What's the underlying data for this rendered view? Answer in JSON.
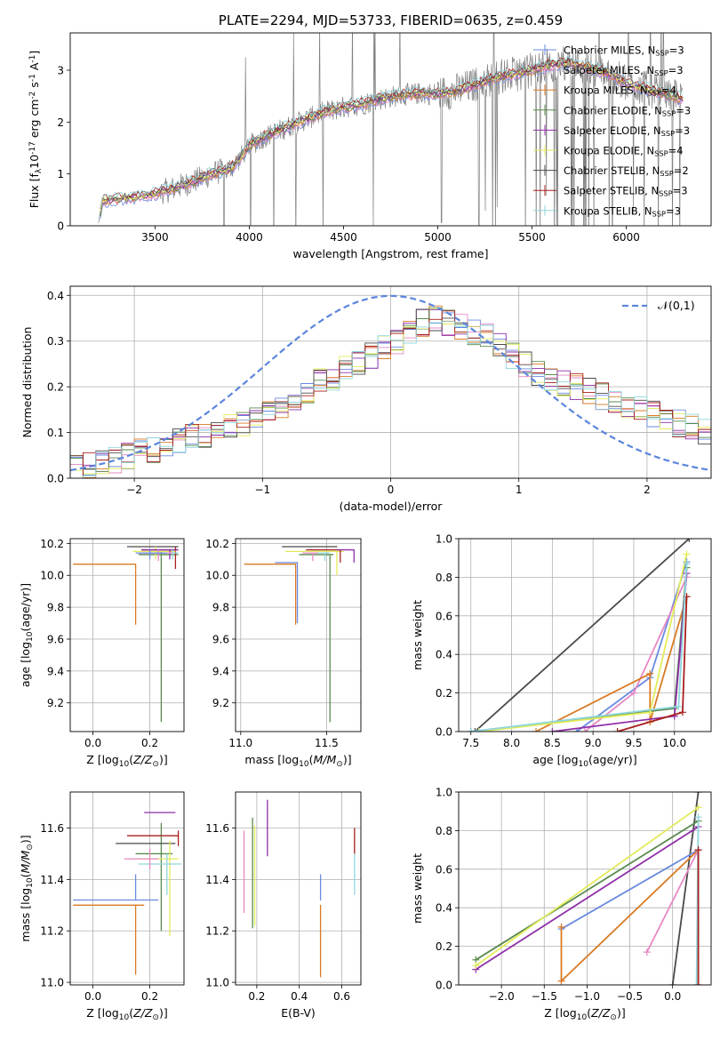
{
  "chart_data": [
    {
      "id": "spectrum",
      "type": "line",
      "title": "PLATE=2294, MJD=53733, FIBERID=0635, z=0.459",
      "xlabel": "wavelength [Angstrom, rest frame]",
      "ylabel": "Flux [f$_\\lambda$10$^{-17}$ erg cm$^{-2}$ s$^{-1}$ A$^{-1}$]",
      "xlim": [
        3050,
        6450
      ],
      "ylim": [
        0,
        3.72
      ],
      "xticks": [
        3500,
        4000,
        4500,
        5000,
        5500,
        6000
      ],
      "yticks": [
        0,
        1,
        2,
        3
      ],
      "legend_position": "upper-right",
      "legend_entries": [
        {
          "label": "Chabrier MILES, N$_{SSP}$=3",
          "color": "#6a8ae0"
        },
        {
          "label": "Salpeter MILES, N$_{SSP}$=3",
          "color": "#e588c3"
        },
        {
          "label": "Kroupa MILES, N$_{SSP}$=4",
          "color": "#d97b24"
        },
        {
          "label": "Chabrier ELODIE, N$_{SSP}$=3",
          "color": "#5a8a4e"
        },
        {
          "label": "Salpeter ELODIE, N$_{SSP}$=3",
          "color": "#8f2fa8"
        },
        {
          "label": "Kroupa ELODIE, N$_{SSP}$=4",
          "color": "#e3eb5a"
        },
        {
          "label": "Chabrier STELIB, N$_{SSP}$=2",
          "color": "#4a4a4a"
        },
        {
          "label": "Salpeter STELIB, N$_{SSP}$=3",
          "color": "#a8201f"
        },
        {
          "label": "Kroupa STELIB, N$_{SSP}$=3",
          "color": "#8fd6dc"
        }
      ],
      "continuum": {
        "x": [
          3200,
          3220,
          3300,
          3400,
          3500,
          3600,
          3700,
          3800,
          3900,
          3950,
          4000,
          4100,
          4200,
          4300,
          4400,
          4500,
          4600,
          4700,
          4800,
          4900,
          5000,
          5100,
          5200,
          5300,
          5400,
          5500,
          5600,
          5700,
          5800,
          5900,
          6000,
          6100,
          6200,
          6300
        ],
        "y": [
          0.05,
          0.48,
          0.52,
          0.55,
          0.62,
          0.72,
          0.85,
          1.0,
          1.1,
          1.3,
          1.55,
          1.75,
          1.9,
          2.05,
          2.2,
          2.28,
          2.35,
          2.45,
          2.52,
          2.55,
          2.55,
          2.6,
          2.72,
          2.85,
          2.92,
          3.0,
          3.1,
          3.15,
          3.05,
          2.95,
          2.75,
          2.65,
          2.55,
          2.45
        ]
      },
      "observed_spectrum_color": "#808080"
    },
    {
      "id": "residuals",
      "type": "line",
      "xlabel": "(data-model)/error",
      "ylabel": "Normed distribution",
      "xlim": [
        -2.5,
        2.5
      ],
      "ylim": [
        0,
        0.42
      ],
      "xticks": [
        -2,
        -1,
        0,
        1,
        2
      ],
      "yticks": [
        0.0,
        0.1,
        0.2,
        0.3,
        0.4
      ],
      "reference_curve": {
        "label": "$\\mathcal{N}(0,1)$",
        "mean": 0,
        "sigma": 1,
        "style": "dashed",
        "color": "#5b86dd"
      },
      "bin_width": 0.1,
      "base_histogram": [
        0.02,
        0.03,
        0.03,
        0.04,
        0.05,
        0.06,
        0.06,
        0.07,
        0.08,
        0.09,
        0.09,
        0.1,
        0.11,
        0.12,
        0.13,
        0.15,
        0.16,
        0.17,
        0.19,
        0.21,
        0.22,
        0.24,
        0.25,
        0.27,
        0.29,
        0.3,
        0.32,
        0.34,
        0.35,
        0.34,
        0.33,
        0.32,
        0.31,
        0.29,
        0.27,
        0.25,
        0.23,
        0.22,
        0.21,
        0.2,
        0.19,
        0.18,
        0.17,
        0.16,
        0.15,
        0.14,
        0.13,
        0.12,
        0.11,
        0.1
      ]
    },
    {
      "id": "z-age",
      "type": "scatter",
      "xlabel": "Z [log$_{10}$($Z/Z_\\odot$)]",
      "ylabel": "age  [log$_{10}$($age/yr$)]",
      "xlim": [
        -0.08,
        0.32
      ],
      "ylim": [
        9.02,
        10.23
      ],
      "xticks": [
        0.0,
        0.2
      ],
      "yticks": [
        9.2,
        9.4,
        9.6,
        9.8,
        10.0,
        10.2
      ],
      "series": [
        {
          "color": "#d97b24",
          "x": 0.15,
          "y": 10.07,
          "xerr": [
            0.22,
            0.0
          ],
          "yerr": [
            0.38,
            0.0
          ]
        },
        {
          "color": "#5a8a4e",
          "x": 0.24,
          "y": 10.13,
          "xerr": [
            0.08,
            0.06
          ],
          "yerr": [
            1.05,
            0.02
          ]
        },
        {
          "color": "#4a4a4a",
          "x": 0.26,
          "y": 10.18,
          "xerr": [
            0.14,
            0.04
          ],
          "yerr": [
            0.0,
            0.0
          ]
        },
        {
          "color": "#a8201f",
          "x": 0.29,
          "y": 10.16,
          "xerr": [
            0.12,
            0.01
          ],
          "yerr": [
            0.12,
            0.02
          ]
        },
        {
          "color": "#e3eb5a",
          "x": 0.22,
          "y": 10.15,
          "xerr": [
            0.08,
            0.07
          ],
          "yerr": [
            0.05,
            0.03
          ]
        },
        {
          "color": "#8f2fa8",
          "x": 0.27,
          "y": 10.16,
          "xerr": [
            0.1,
            0.03
          ],
          "yerr": [
            0.06,
            0.0
          ]
        },
        {
          "color": "#8fd6dc",
          "x": 0.28,
          "y": 10.14,
          "xerr": [
            0.06,
            0.02
          ],
          "yerr": [
            0.04,
            0.02
          ]
        },
        {
          "color": "#e588c3",
          "x": 0.23,
          "y": 10.14,
          "xerr": [
            0.07,
            0.05
          ],
          "yerr": [
            0.05,
            0.02
          ]
        },
        {
          "color": "#6a8ae0",
          "x": 0.2,
          "y": 10.14,
          "xerr": [
            0.05,
            0.06
          ],
          "yerr": [
            0.04,
            0.02
          ]
        }
      ]
    },
    {
      "id": "mass-age",
      "type": "scatter",
      "xlabel": "mass [log$_{10}$($M/M_\\odot$)]",
      "xlim": [
        10.97,
        11.7
      ],
      "ylim": [
        9.02,
        10.23
      ],
      "xticks": [
        11.0,
        11.5
      ],
      "yticks": [
        9.2,
        9.4,
        9.6,
        9.8,
        10.0,
        10.2
      ],
      "series": [
        {
          "color": "#d97b24",
          "x": 11.32,
          "y": 10.07,
          "xerr": [
            0.3,
            0.0
          ],
          "yerr": [
            0.38,
            0.0
          ]
        },
        {
          "color": "#6a8ae0",
          "x": 11.33,
          "y": 10.08,
          "xerr": [
            0.13,
            0.0
          ],
          "yerr": [
            0.38,
            0.0
          ]
        },
        {
          "color": "#5a8a4e",
          "x": 11.52,
          "y": 10.13,
          "xerr": [
            0.18,
            0.02
          ],
          "yerr": [
            1.05,
            0.0
          ]
        },
        {
          "color": "#4a4a4a",
          "x": 11.56,
          "y": 10.18,
          "xerr": [
            0.32,
            0.0
          ],
          "yerr": [
            0.0,
            0.0
          ]
        },
        {
          "color": "#e3eb5a",
          "x": 11.56,
          "y": 10.15,
          "xerr": [
            0.3,
            0.04
          ],
          "yerr": [
            0.15,
            0.0
          ]
        },
        {
          "color": "#a8201f",
          "x": 11.58,
          "y": 10.16,
          "xerr": [
            0.2,
            0.0
          ],
          "yerr": [
            0.08,
            0.0
          ]
        },
        {
          "color": "#8f2fa8",
          "x": 11.66,
          "y": 10.16,
          "xerr": [
            0.1,
            0.0
          ],
          "yerr": [
            0.08,
            0.0
          ]
        },
        {
          "color": "#8fd6dc",
          "x": 11.49,
          "y": 10.14,
          "xerr": [
            0.1,
            0.03
          ],
          "yerr": [
            0.05,
            0.0
          ]
        },
        {
          "color": "#e588c3",
          "x": 11.42,
          "y": 10.14,
          "xerr": [
            0.06,
            0.03
          ],
          "yerr": [
            0.05,
            0.0
          ]
        }
      ]
    },
    {
      "id": "age-massweight",
      "type": "line",
      "xlabel": "age  [log$_{10}$($age/yr$)]",
      "ylabel": "mass weight",
      "xlim": [
        7.35,
        10.45
      ],
      "ylim": [
        0,
        1.0
      ],
      "xticks": [
        7.5,
        8.0,
        8.5,
        9.0,
        9.5,
        10.0
      ],
      "yticks": [
        0.0,
        0.2,
        0.4,
        0.6,
        0.8,
        1.0
      ],
      "series": [
        {
          "color": "#4a4a4a",
          "x": [
            7.55,
            10.18
          ],
          "y": [
            0.0,
            1.0
          ]
        },
        {
          "color": "#6a8ae0",
          "x": [
            8.8,
            9.7,
            10.15
          ],
          "y": [
            0.0,
            0.28,
            0.88
          ]
        },
        {
          "color": "#e588c3",
          "x": [
            8.9,
            9.5,
            10.15
          ],
          "y": [
            0.0,
            0.2,
            0.8
          ]
        },
        {
          "color": "#d97b24",
          "x": [
            8.3,
            9.7,
            9.7,
            10.15
          ],
          "y": [
            0.0,
            0.3,
            0.05,
            0.7
          ]
        },
        {
          "color": "#5a8a4e",
          "x": [
            7.5,
            10.0,
            10.15
          ],
          "y": [
            0.0,
            0.12,
            0.85
          ]
        },
        {
          "color": "#8f2fa8",
          "x": [
            8.5,
            10.0,
            10.15
          ],
          "y": [
            0.0,
            0.08,
            0.82
          ]
        },
        {
          "color": "#e3eb5a",
          "x": [
            7.6,
            9.7,
            10.15
          ],
          "y": [
            0.0,
            0.1,
            0.92
          ]
        },
        {
          "color": "#a8201f",
          "x": [
            9.3,
            10.1,
            10.15
          ],
          "y": [
            0.0,
            0.1,
            0.7
          ]
        },
        {
          "color": "#8fd6dc",
          "x": [
            7.5,
            10.05,
            10.15
          ],
          "y": [
            0.0,
            0.13,
            0.87
          ]
        }
      ]
    },
    {
      "id": "z-mass",
      "type": "scatter",
      "xlabel": "Z [log$_{10}$($Z/Z_\\odot$)]",
      "ylabel": "mass [log$_{10}$($M/M_\\odot$)]",
      "xlim": [
        -0.08,
        0.32
      ],
      "ylim": [
        10.99,
        11.74
      ],
      "xticks": [
        0.0,
        0.2
      ],
      "yticks": [
        11.0,
        11.2,
        11.4,
        11.6
      ],
      "series": [
        {
          "color": "#d97b24",
          "x": 0.15,
          "y": 11.3,
          "xerr": [
            0.22,
            0.03
          ],
          "yerr": [
            0.27,
            0.0
          ]
        },
        {
          "color": "#6a8ae0",
          "x": 0.15,
          "y": 11.32,
          "xerr": [
            0.22,
            0.08
          ],
          "yerr": [
            0.0,
            0.1
          ]
        },
        {
          "color": "#5a8a4e",
          "x": 0.24,
          "y": 11.5,
          "xerr": [
            0.09,
            0.04
          ],
          "yerr": [
            0.3,
            0.12
          ]
        },
        {
          "color": "#4a4a4a",
          "x": 0.25,
          "y": 11.54,
          "xerr": [
            0.17,
            0.04
          ],
          "yerr": [
            0.0,
            0.0
          ]
        },
        {
          "color": "#a8201f",
          "x": 0.3,
          "y": 11.57,
          "xerr": [
            0.18,
            0.0
          ],
          "yerr": [
            0.04,
            0.02
          ]
        },
        {
          "color": "#8f2fa8",
          "x": 0.25,
          "y": 11.66,
          "xerr": [
            0.07,
            0.04
          ],
          "yerr": [
            0.0,
            0.0
          ]
        },
        {
          "color": "#e3eb5a",
          "x": 0.27,
          "y": 11.48,
          "xerr": [
            0.13,
            0.03
          ],
          "yerr": [
            0.3,
            0.07
          ]
        },
        {
          "color": "#8fd6dc",
          "x": 0.26,
          "y": 11.46,
          "xerr": [
            0.1,
            0.05
          ],
          "yerr": [
            0.12,
            0.04
          ]
        },
        {
          "color": "#e588c3",
          "x": 0.2,
          "y": 11.48,
          "xerr": [
            0.09,
            0.03
          ],
          "yerr": [
            0.04,
            0.04
          ]
        }
      ]
    },
    {
      "id": "ebv-mass",
      "type": "scatter",
      "xlabel": "E(B-V)",
      "xlim": [
        0.1,
        0.69
      ],
      "ylim": [
        10.99,
        11.74
      ],
      "xticks": [
        0.2,
        0.4,
        0.6
      ],
      "yticks": [
        11.0,
        11.2,
        11.4,
        11.6
      ],
      "series": [
        {
          "color": "#e588c3",
          "x": 0.14,
          "y": 11.43,
          "yerr": [
            0.16,
            0.16
          ]
        },
        {
          "color": "#5a8a4e",
          "x": 0.18,
          "y": 11.42,
          "yerr": [
            0.21,
            0.22
          ]
        },
        {
          "color": "#e3eb5a",
          "x": 0.19,
          "y": 11.42,
          "yerr": [
            0.2,
            0.19
          ]
        },
        {
          "color": "#8f2fa8",
          "x": 0.25,
          "y": 11.6,
          "yerr": [
            0.11,
            0.11
          ]
        },
        {
          "color": "#d97b24",
          "x": 0.5,
          "y": 11.3,
          "yerr": [
            0.28,
            0.0
          ]
        },
        {
          "color": "#6a8ae0",
          "x": 0.5,
          "y": 11.32,
          "yerr": [
            0.0,
            0.1
          ]
        },
        {
          "color": "#a8201f",
          "x": 0.66,
          "y": 11.55,
          "yerr": [
            0.05,
            0.05
          ]
        },
        {
          "color": "#8fd6dc",
          "x": 0.66,
          "y": 11.42,
          "yerr": [
            0.08,
            0.08
          ]
        }
      ]
    },
    {
      "id": "z-massweight",
      "type": "line",
      "xlabel": "Z [log$_{10}$($Z/Z_\\odot$)]",
      "ylabel": "mass weight",
      "xlim": [
        -2.5,
        0.45
      ],
      "ylim": [
        0,
        1.0
      ],
      "xticks": [
        -2.0,
        -1.5,
        -1.0,
        -0.5,
        0.0
      ],
      "yticks": [
        0.0,
        0.2,
        0.4,
        0.6,
        0.8,
        1.0
      ],
      "series": [
        {
          "color": "#4a4a4a",
          "x": [
            0.0,
            0.3
          ],
          "y": [
            0.0,
            1.0
          ]
        },
        {
          "color": "#5a8a4e",
          "x": [
            -2.3,
            0.3
          ],
          "y": [
            0.13,
            0.85
          ]
        },
        {
          "color": "#8f2fa8",
          "x": [
            -2.3,
            0.3
          ],
          "y": [
            0.08,
            0.82
          ]
        },
        {
          "color": "#e3eb5a",
          "x": [
            -2.3,
            0.3
          ],
          "y": [
            0.1,
            0.92
          ]
        },
        {
          "color": "#6a8ae0",
          "x": [
            -1.3,
            0.3
          ],
          "y": [
            0.29,
            0.7
          ]
        },
        {
          "color": "#d97b24",
          "x": [
            -1.3,
            -1.3,
            0.3
          ],
          "y": [
            0.3,
            0.02,
            0.7
          ]
        },
        {
          "color": "#e588c3",
          "x": [
            -0.3,
            0.3
          ],
          "y": [
            0.17,
            0.7
          ]
        },
        {
          "color": "#8fd6dc",
          "x": [
            0.28,
            0.3
          ],
          "y": [
            0.0,
            0.87
          ]
        },
        {
          "color": "#a8201f",
          "x": [
            0.3,
            0.3
          ],
          "y": [
            0.0,
            0.7
          ]
        }
      ]
    }
  ]
}
